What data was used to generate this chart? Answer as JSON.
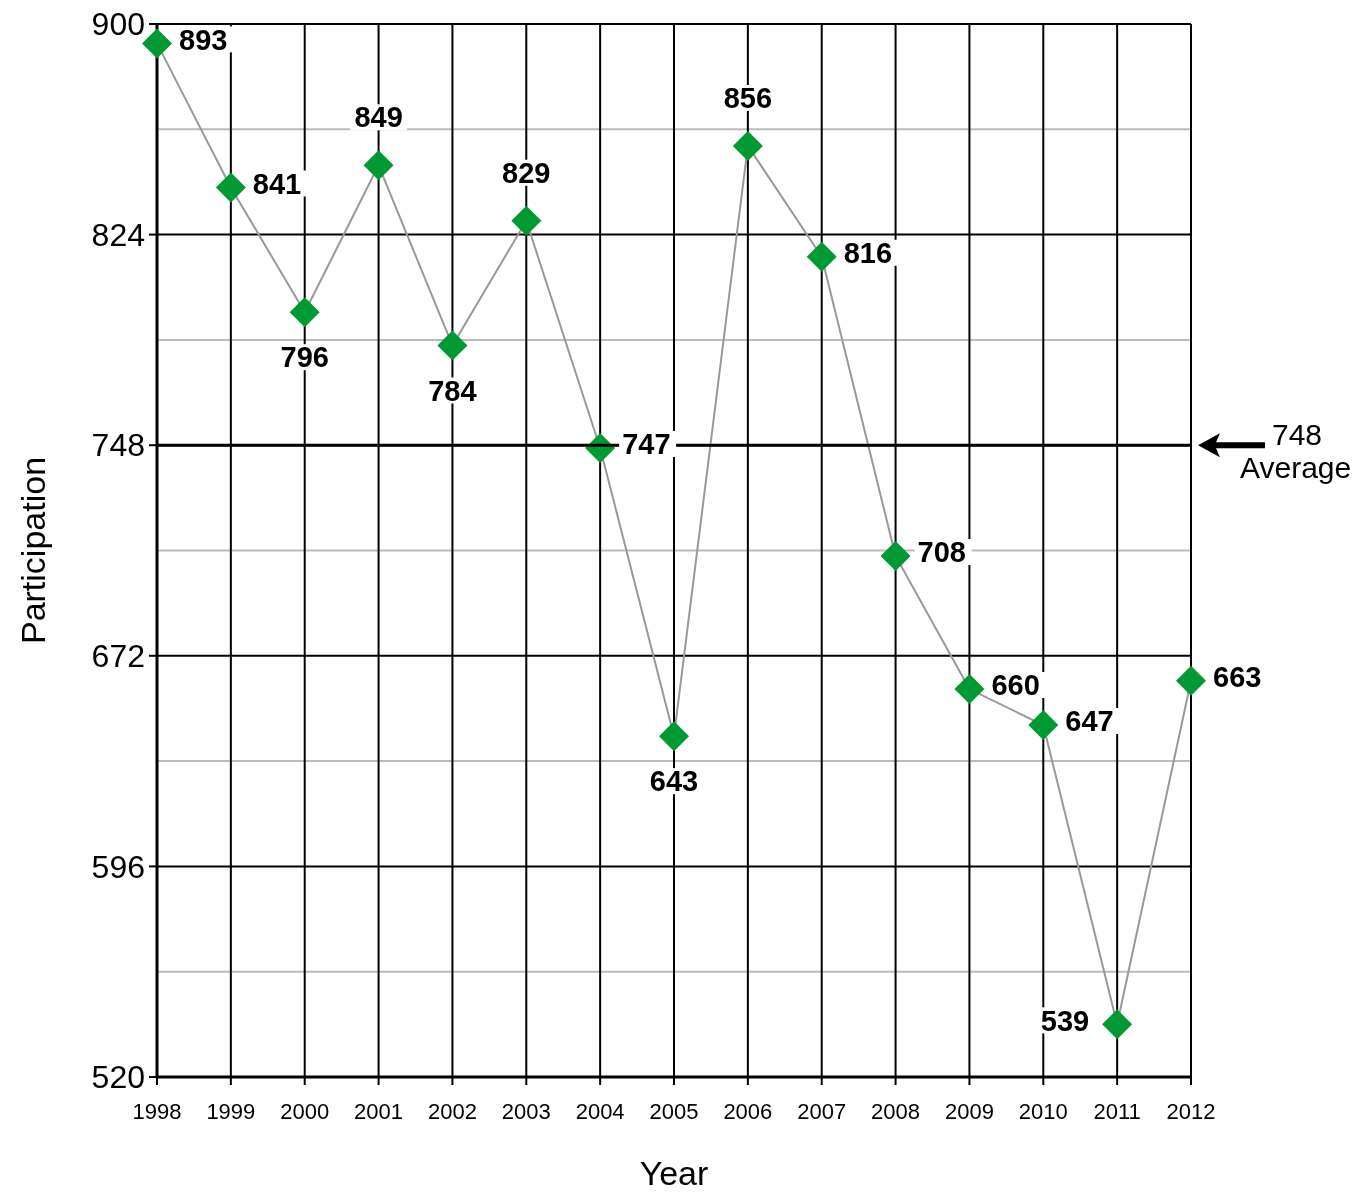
{
  "chart_data": {
    "type": "line",
    "xlabel": "Year",
    "ylabel": "Participation",
    "categories": [
      "1998",
      "1999",
      "2000",
      "2001",
      "2002",
      "2003",
      "2004",
      "2005",
      "2006",
      "2007",
      "2008",
      "2009",
      "2010",
      "2011",
      "2012"
    ],
    "series": [
      {
        "color": "#009933",
        "values": [
          893,
          841,
          796,
          849,
          784,
          829,
          747,
          643,
          856,
          816,
          708,
          660,
          647,
          539,
          663
        ]
      }
    ],
    "ylim": [
      520,
      900
    ],
    "yticks": [
      520,
      {
        "value": 558,
        "label": null
      },
      596,
      {
        "value": 634,
        "label": null
      },
      672,
      {
        "value": 710,
        "label": null
      },
      748,
      {
        "value": 786,
        "label": null
      },
      824,
      {
        "value": 862,
        "label": null
      },
      900
    ],
    "ref_lines": [
      {
        "axis": "y",
        "value": 748,
        "label": "748 Average"
      }
    ],
    "grid": true,
    "marker": "diamond",
    "line_style": "solid",
    "data_labels": true
  }
}
